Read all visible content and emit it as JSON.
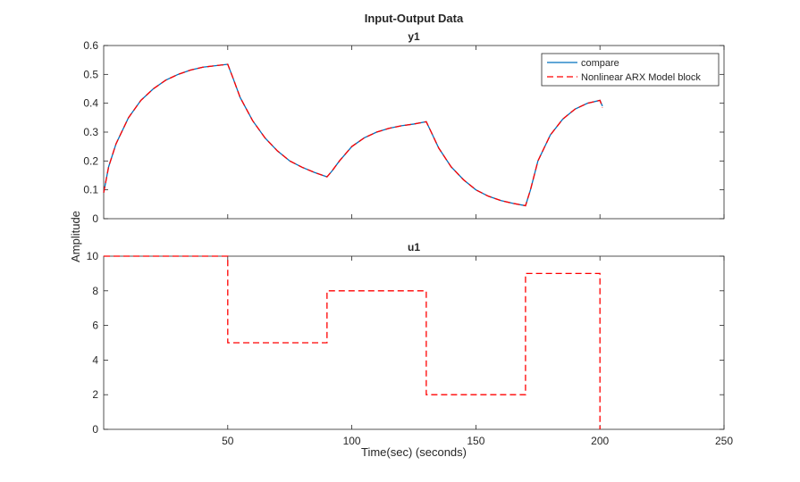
{
  "chart_data": [
    {
      "type": "line",
      "figure_title": "Input-Output Data",
      "title": "y1",
      "xlabel": "",
      "ylabel": "Amplitude",
      "xlim": [
        0,
        250
      ],
      "ylim": [
        0,
        0.6
      ],
      "xticks": [
        50,
        100,
        150,
        200,
        250
      ],
      "yticks": [
        0,
        0.1,
        0.2,
        0.3,
        0.4,
        0.5,
        0.6
      ],
      "show_xtick_labels": false,
      "legend": {
        "position": "top-right",
        "entries": [
          "compare",
          "Nonlinear ARX Model block"
        ]
      },
      "series": [
        {
          "name": "compare",
          "color": "#0072bd",
          "style": "solid",
          "x": [
            0,
            2,
            5,
            10,
            15,
            20,
            25,
            30,
            35,
            40,
            45,
            50,
            52,
            55,
            60,
            65,
            70,
            75,
            80,
            85,
            90,
            92,
            95,
            100,
            105,
            110,
            115,
            120,
            125,
            130,
            132,
            135,
            140,
            145,
            150,
            155,
            160,
            165,
            170,
            172,
            175,
            180,
            185,
            190,
            195,
            200,
            201
          ],
          "y": [
            0.09,
            0.18,
            0.26,
            0.35,
            0.41,
            0.45,
            0.48,
            0.5,
            0.515,
            0.525,
            0.53,
            0.535,
            0.49,
            0.42,
            0.34,
            0.28,
            0.235,
            0.2,
            0.178,
            0.16,
            0.145,
            0.165,
            0.2,
            0.25,
            0.28,
            0.3,
            0.313,
            0.322,
            0.328,
            0.336,
            0.3,
            0.245,
            0.18,
            0.135,
            0.1,
            0.078,
            0.063,
            0.053,
            0.045,
            0.1,
            0.2,
            0.29,
            0.345,
            0.38,
            0.4,
            0.41,
            0.39
          ]
        },
        {
          "name": "Nonlinear ARX Model block",
          "color": "#ff0000",
          "style": "dashed",
          "x": [
            0,
            2,
            5,
            10,
            15,
            20,
            25,
            30,
            35,
            40,
            45,
            50,
            52,
            55,
            60,
            65,
            70,
            75,
            80,
            85,
            90,
            92,
            95,
            100,
            105,
            110,
            115,
            120,
            125,
            130,
            132,
            135,
            140,
            145,
            150,
            155,
            160,
            165,
            170,
            172,
            175,
            180,
            185,
            190,
            195,
            200,
            201
          ],
          "y": [
            0.09,
            0.18,
            0.26,
            0.35,
            0.41,
            0.45,
            0.48,
            0.5,
            0.515,
            0.525,
            0.53,
            0.535,
            0.49,
            0.42,
            0.34,
            0.28,
            0.235,
            0.2,
            0.178,
            0.16,
            0.145,
            0.165,
            0.2,
            0.25,
            0.28,
            0.3,
            0.313,
            0.322,
            0.328,
            0.336,
            0.3,
            0.245,
            0.18,
            0.135,
            0.1,
            0.078,
            0.063,
            0.053,
            0.045,
            0.1,
            0.2,
            0.29,
            0.345,
            0.38,
            0.4,
            0.41,
            0.385
          ]
        }
      ]
    },
    {
      "type": "line",
      "title": "u1",
      "xlabel": "Time(sec) (seconds)",
      "ylabel": "",
      "xlim": [
        0,
        250
      ],
      "ylim": [
        0,
        10
      ],
      "xticks": [
        50,
        100,
        150,
        200,
        250
      ],
      "yticks": [
        0,
        2,
        4,
        6,
        8,
        10
      ],
      "show_xtick_labels": true,
      "series": [
        {
          "color": "#ff0000",
          "style": "dashed",
          "x": [
            0,
            50,
            50,
            90,
            90,
            130,
            130,
            170,
            170,
            200,
            200
          ],
          "y": [
            10,
            10,
            5,
            5,
            8,
            8,
            2,
            2,
            9,
            9,
            0
          ]
        }
      ]
    }
  ]
}
